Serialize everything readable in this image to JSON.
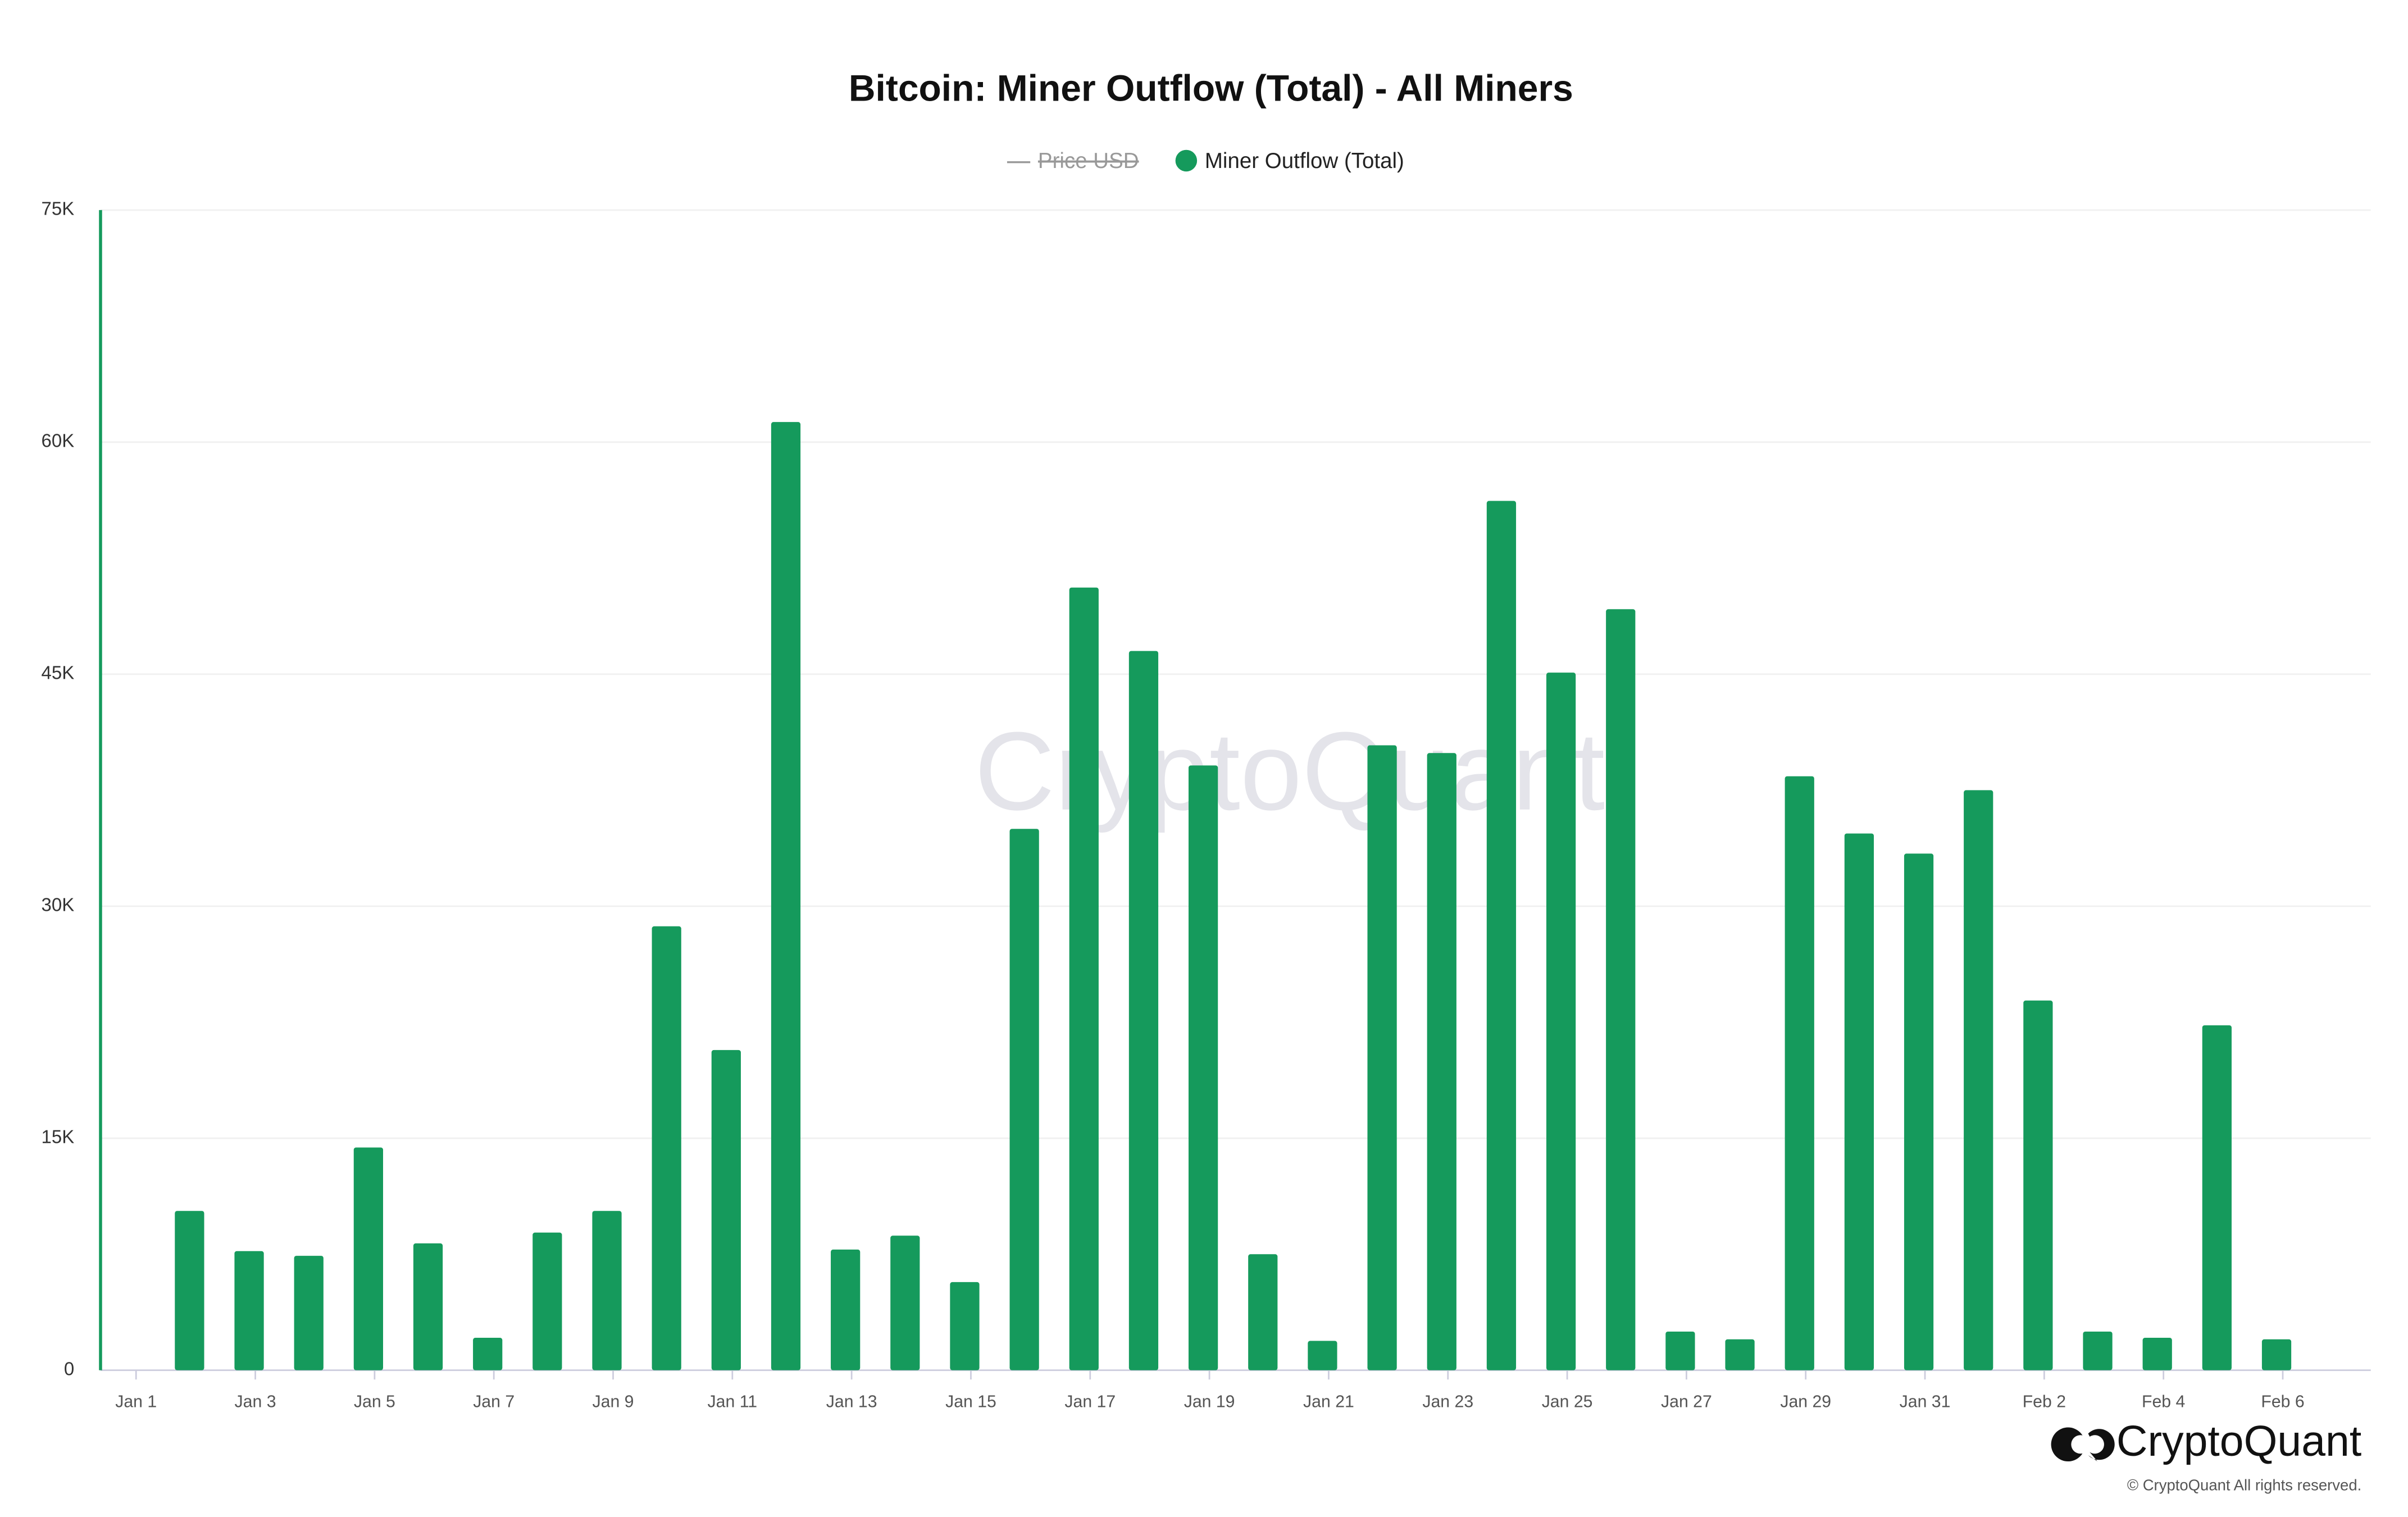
{
  "chart_data": {
    "type": "bar",
    "title": "Bitcoin: Miner Outflow (Total) - All Miners",
    "legend_hidden": [
      "Price USD"
    ],
    "categories": [
      "Jan 1",
      null,
      "Jan 3",
      null,
      "Jan 5",
      null,
      "Jan 7",
      null,
      "Jan 9",
      null,
      "Jan 11",
      null,
      "Jan 13",
      null,
      "Jan 15",
      null,
      "Jan 17",
      null,
      "Jan 19",
      null,
      "Jan 21",
      null,
      "Jan 23",
      null,
      "Jan 25",
      null,
      "Jan 27",
      null,
      "Jan 29",
      null,
      "Jan 31",
      null,
      "Feb 2",
      null,
      "Feb 4",
      null,
      "Feb 6"
    ],
    "series": [
      {
        "name": "Miner Outflow (Total)",
        "color": "#159a5c",
        "values": [
          null,
          10300,
          7700,
          7400,
          14400,
          8200,
          2100,
          8900,
          10300,
          28700,
          20700,
          61300,
          7800,
          8700,
          5700,
          35000,
          50600,
          46500,
          39100,
          7500,
          1900,
          40400,
          39900,
          56200,
          45100,
          49200,
          2500,
          2000,
          38400,
          34700,
          33400,
          37500,
          23900,
          2500,
          2100,
          22300,
          2000
        ]
      }
    ],
    "ylim": [
      0,
      75000
    ],
    "yticks": [
      0,
      {
        "value": 15000,
        "label": "15K"
      },
      {
        "value": 30000,
        "label": "30K"
      },
      {
        "value": 45000,
        "label": "45K"
      },
      {
        "value": 60000,
        "label": "60K"
      },
      {
        "value": 75000,
        "label": "75K"
      }
    ],
    "grid": true,
    "watermark": "CryptoQuant",
    "brand": "CryptoQuant",
    "copyright": "© CryptoQuant All rights reserved."
  }
}
